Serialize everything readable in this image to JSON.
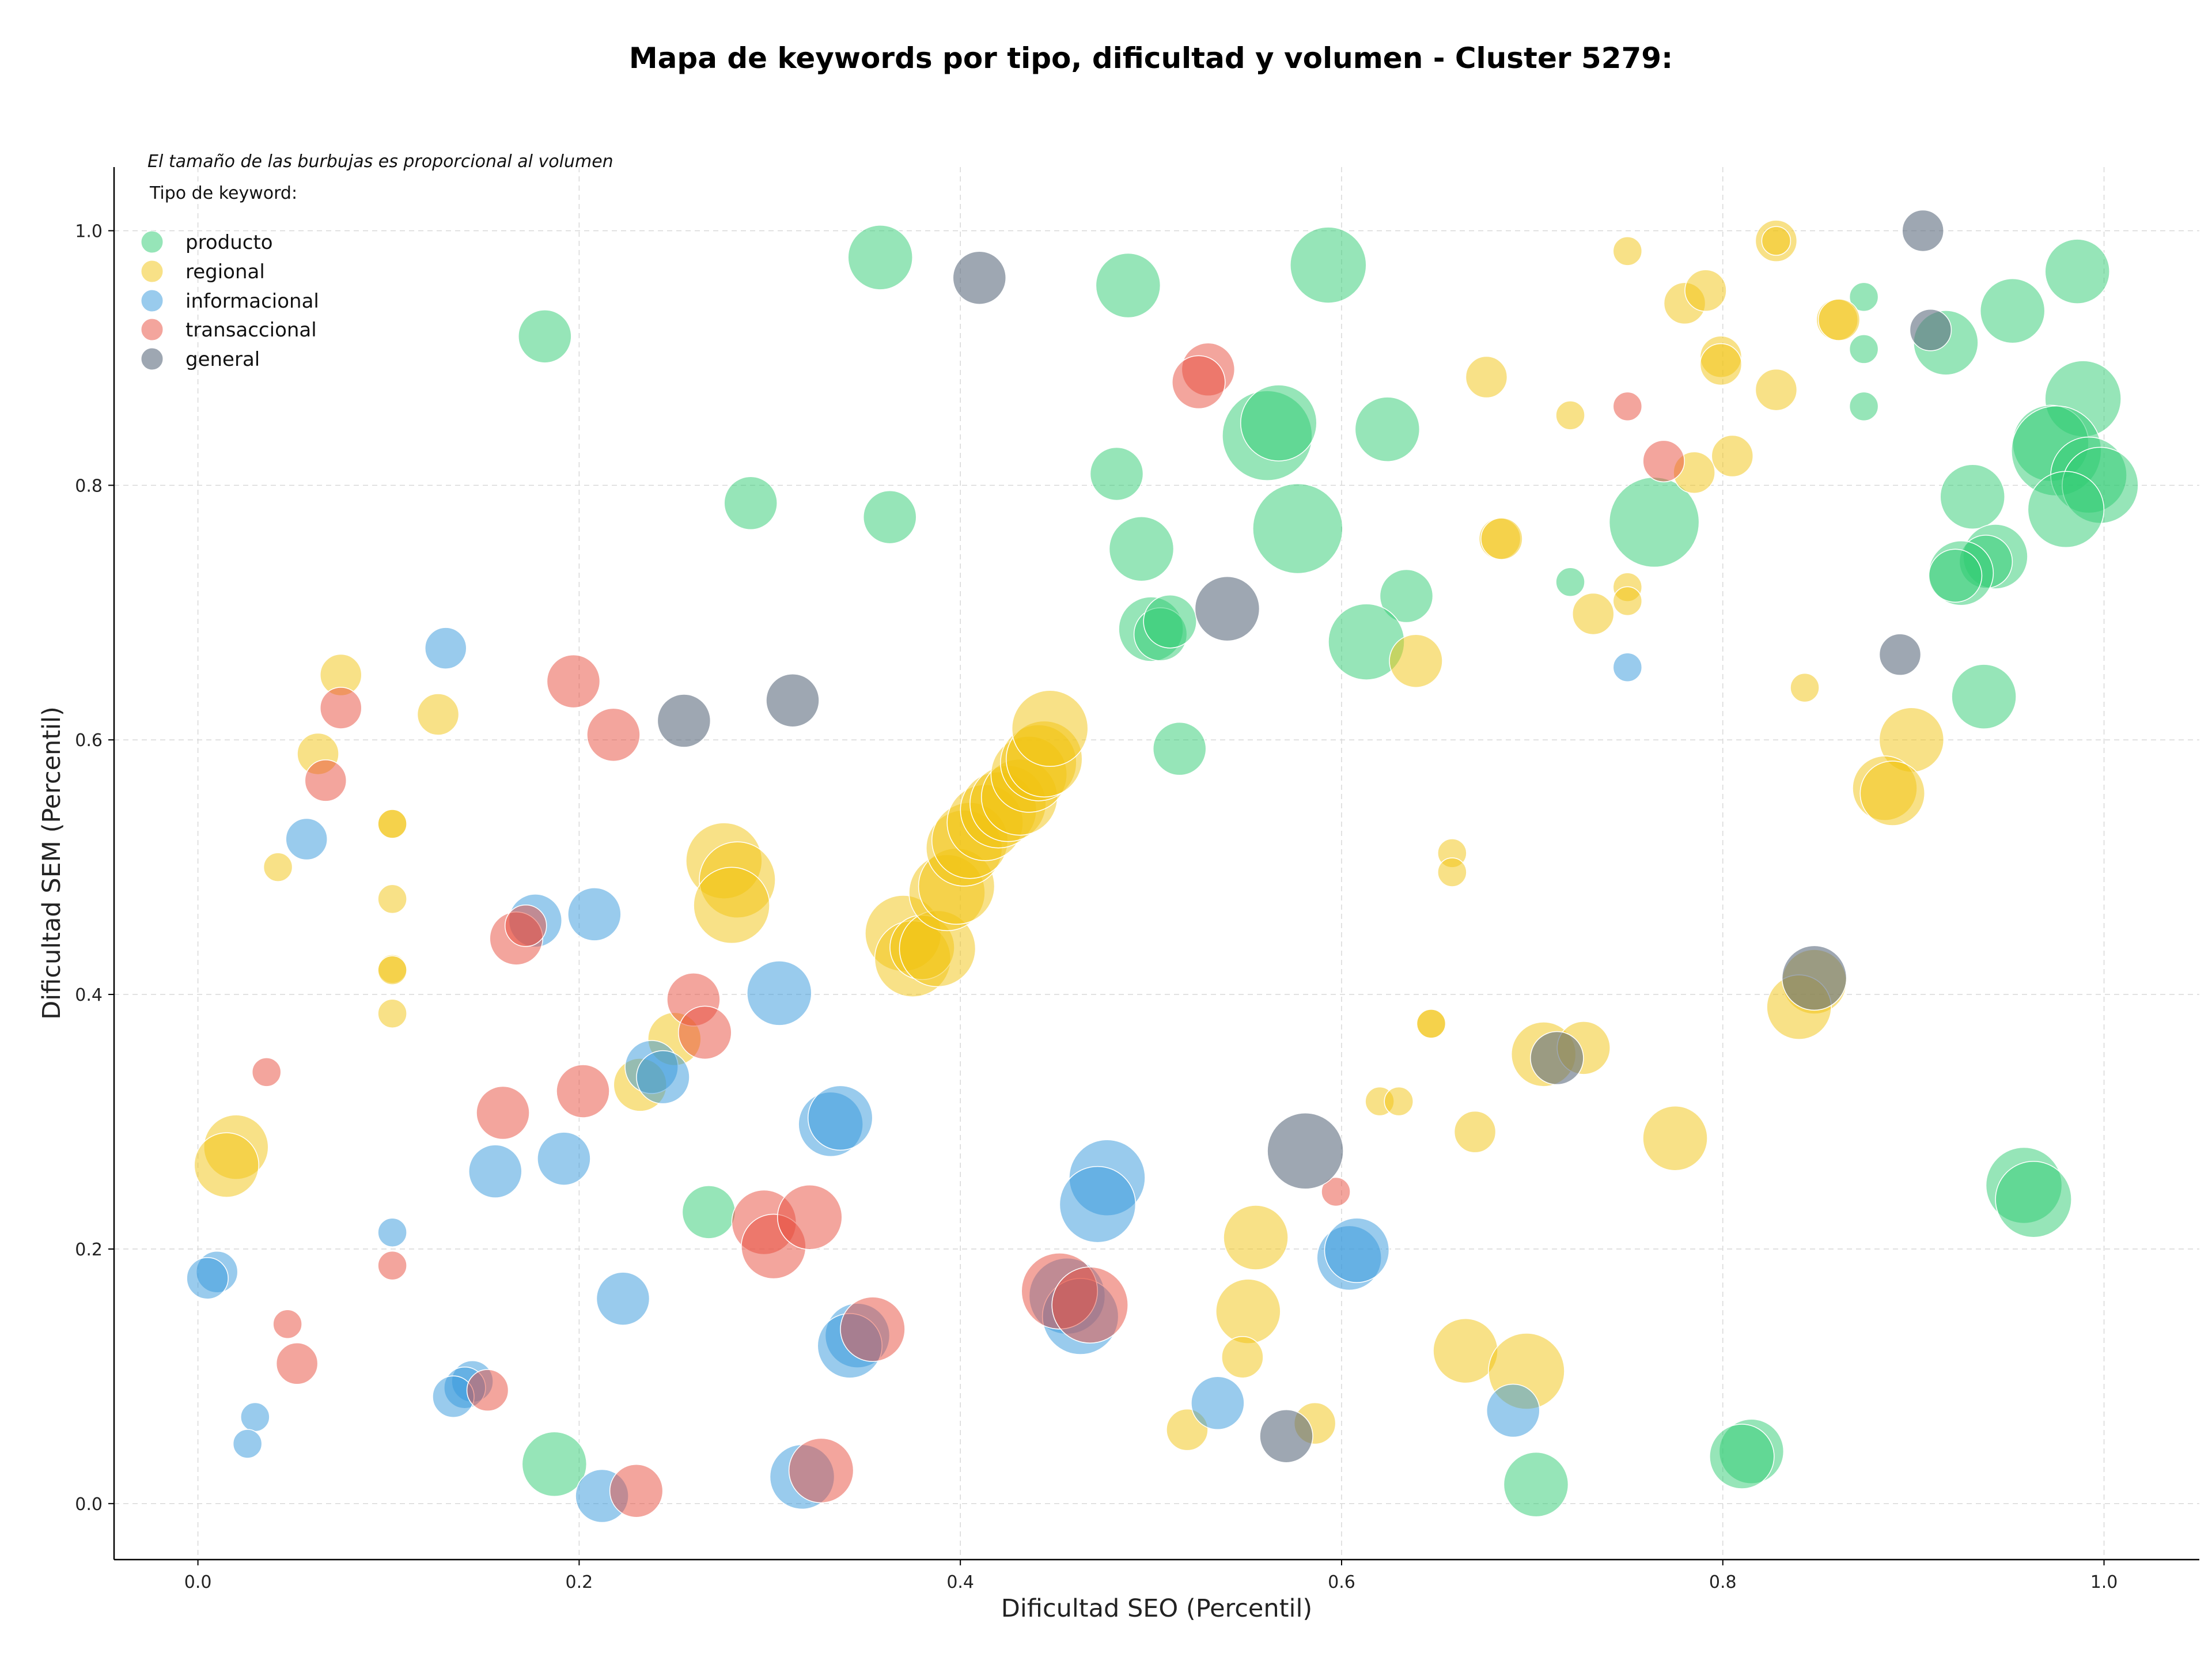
{
  "chart_data": {
    "type": "scatter",
    "title": "Mapa de keywords por tipo, dificultad y volumen - Cluster 5279:",
    "xlabel": "Dificultad SEO (Percentil)",
    "ylabel": "Dificultad SEM (Percentil)",
    "xlim": [
      -0.044,
      1.05
    ],
    "ylim": [
      -0.044,
      1.05
    ],
    "xticks": [
      0.0,
      0.2,
      0.4,
      0.6,
      0.8,
      1.0
    ],
    "yticks": [
      0.0,
      0.2,
      0.4,
      0.6,
      0.8,
      1.0
    ],
    "xtick_labels": [
      "0.0",
      "0.2",
      "0.4",
      "0.6",
      "0.8",
      "1.0"
    ],
    "ytick_labels": [
      "0.0",
      "0.2",
      "0.4",
      "0.6",
      "0.8",
      "1.0"
    ],
    "grid": true,
    "size_note": "El tamaño de las burbujas es proporcional al volumen",
    "legend_title": "Tipo de keyword:",
    "legend_position": "top-left",
    "series": [
      {
        "name": "producto",
        "color": "#2ecc71",
        "points": [
          [
            0.182,
            0.917,
            3
          ],
          [
            0.358,
            0.979,
            4
          ],
          [
            0.593,
            0.973,
            5
          ],
          [
            0.488,
            0.957,
            4
          ],
          [
            0.29,
            0.786,
            3
          ],
          [
            0.363,
            0.775,
            3
          ],
          [
            0.482,
            0.809,
            3
          ],
          [
            0.495,
            0.75,
            4
          ],
          [
            0.561,
            0.839,
            6
          ],
          [
            0.567,
            0.849,
            5
          ],
          [
            0.624,
            0.844,
            4
          ],
          [
            0.577,
            0.766,
            6
          ],
          [
            0.634,
            0.713,
            3
          ],
          [
            0.613,
            0.677,
            5
          ],
          [
            0.5,
            0.687,
            4
          ],
          [
            0.505,
            0.683,
            3
          ],
          [
            0.51,
            0.693,
            3
          ],
          [
            0.515,
            0.593,
            3
          ],
          [
            0.874,
            0.948,
            1
          ],
          [
            0.874,
            0.907,
            1
          ],
          [
            0.874,
            0.862,
            1
          ],
          [
            0.72,
            0.724,
            1
          ],
          [
            0.764,
            0.771,
            6
          ],
          [
            0.986,
            0.968,
            4
          ],
          [
            0.952,
            0.937,
            4
          ],
          [
            0.917,
            0.912,
            4
          ],
          [
            0.989,
            0.868,
            5
          ],
          [
            0.972,
            0.833,
            5
          ],
          [
            0.975,
            0.827,
            6
          ],
          [
            0.992,
            0.808,
            5
          ],
          [
            0.998,
            0.8,
            5
          ],
          [
            0.98,
            0.781,
            5
          ],
          [
            0.931,
            0.791,
            4
          ],
          [
            0.943,
            0.744,
            4
          ],
          [
            0.938,
            0.74,
            3
          ],
          [
            0.925,
            0.731,
            4
          ],
          [
            0.922,
            0.729,
            3
          ],
          [
            0.937,
            0.634,
            4
          ],
          [
            0.958,
            0.25,
            5
          ],
          [
            0.963,
            0.239,
            5
          ],
          [
            0.268,
            0.229,
            3
          ],
          [
            0.187,
            0.031,
            4
          ],
          [
            0.815,
            0.041,
            4
          ],
          [
            0.81,
            0.037,
            4
          ],
          [
            0.702,
            0.015,
            4
          ]
        ]
      },
      {
        "name": "regional",
        "color": "#f1c40f",
        "points": [
          [
            0.075,
            0.651,
            2
          ],
          [
            0.063,
            0.589,
            2
          ],
          [
            0.126,
            0.62,
            2
          ],
          [
            0.102,
            0.534,
            1
          ],
          [
            0.102,
            0.534,
            1
          ],
          [
            0.042,
            0.5,
            1
          ],
          [
            0.102,
            0.475,
            1
          ],
          [
            0.102,
            0.42,
            1
          ],
          [
            0.102,
            0.419,
            1
          ],
          [
            0.102,
            0.385,
            1
          ],
          [
            0.02,
            0.28,
            4
          ],
          [
            0.015,
            0.266,
            4
          ],
          [
            0.232,
            0.329,
            3
          ],
          [
            0.25,
            0.365,
            3
          ],
          [
            0.276,
            0.505,
            5
          ],
          [
            0.283,
            0.49,
            5
          ],
          [
            0.28,
            0.47,
            5
          ],
          [
            0.37,
            0.448,
            5
          ],
          [
            0.375,
            0.428,
            5
          ],
          [
            0.38,
            0.437,
            4
          ],
          [
            0.388,
            0.436,
            5
          ],
          [
            0.393,
            0.48,
            5
          ],
          [
            0.398,
            0.485,
            5
          ],
          [
            0.402,
            0.515,
            5
          ],
          [
            0.405,
            0.521,
            5
          ],
          [
            0.413,
            0.535,
            5
          ],
          [
            0.42,
            0.545,
            5
          ],
          [
            0.425,
            0.55,
            5
          ],
          [
            0.431,
            0.555,
            5
          ],
          [
            0.436,
            0.573,
            5
          ],
          [
            0.441,
            0.582,
            5
          ],
          [
            0.444,
            0.585,
            5
          ],
          [
            0.447,
            0.609,
            5
          ],
          [
            0.75,
            0.984,
            1
          ],
          [
            0.828,
            0.992,
            2
          ],
          [
            0.828,
            0.992,
            1
          ],
          [
            0.78,
            0.943,
            2
          ],
          [
            0.791,
            0.953,
            2
          ],
          [
            0.86,
            0.93,
            2
          ],
          [
            0.861,
            0.93,
            2
          ],
          [
            0.799,
            0.901,
            2
          ],
          [
            0.799,
            0.895,
            2
          ],
          [
            0.676,
            0.885,
            2
          ],
          [
            0.72,
            0.855,
            1
          ],
          [
            0.828,
            0.875,
            2
          ],
          [
            0.805,
            0.823,
            2
          ],
          [
            0.785,
            0.81,
            2
          ],
          [
            0.683,
            0.758,
            2
          ],
          [
            0.684,
            0.758,
            2
          ],
          [
            0.75,
            0.72,
            1
          ],
          [
            0.75,
            0.709,
            1
          ],
          [
            0.732,
            0.699,
            2
          ],
          [
            0.639,
            0.662,
            3
          ],
          [
            0.843,
            0.641,
            1
          ],
          [
            0.899,
            0.6,
            4
          ],
          [
            0.885,
            0.562,
            4
          ],
          [
            0.889,
            0.558,
            4
          ],
          [
            0.658,
            0.511,
            1
          ],
          [
            0.658,
            0.496,
            1
          ],
          [
            0.848,
            0.41,
            4
          ],
          [
            0.84,
            0.39,
            4
          ],
          [
            0.647,
            0.377,
            1
          ],
          [
            0.647,
            0.377,
            1
          ],
          [
            0.706,
            0.353,
            4
          ],
          [
            0.727,
            0.358,
            3
          ],
          [
            0.62,
            0.316,
            1
          ],
          [
            0.63,
            0.316,
            1
          ],
          [
            0.67,
            0.292,
            2
          ],
          [
            0.775,
            0.287,
            4
          ],
          [
            0.555,
            0.209,
            4
          ],
          [
            0.551,
            0.151,
            4
          ],
          [
            0.548,
            0.115,
            2
          ],
          [
            0.519,
            0.058,
            2
          ],
          [
            0.586,
            0.063,
            2
          ],
          [
            0.665,
            0.12,
            4
          ],
          [
            0.697,
            0.104,
            5
          ]
        ]
      },
      {
        "name": "informacional",
        "color": "#3498db",
        "points": [
          [
            0.13,
            0.672,
            2
          ],
          [
            0.057,
            0.522,
            2
          ],
          [
            0.177,
            0.458,
            3
          ],
          [
            0.208,
            0.463,
            3
          ],
          [
            0.305,
            0.401,
            4
          ],
          [
            0.238,
            0.343,
            3
          ],
          [
            0.244,
            0.335,
            3
          ],
          [
            0.156,
            0.261,
            3
          ],
          [
            0.192,
            0.271,
            3
          ],
          [
            0.332,
            0.298,
            4
          ],
          [
            0.337,
            0.303,
            4
          ],
          [
            0.477,
            0.256,
            5
          ],
          [
            0.472,
            0.235,
            5
          ],
          [
            0.102,
            0.213,
            1
          ],
          [
            0.01,
            0.182,
            2
          ],
          [
            0.005,
            0.177,
            2
          ],
          [
            0.223,
            0.161,
            3
          ],
          [
            0.456,
            0.163,
            5
          ],
          [
            0.463,
            0.147,
            5
          ],
          [
            0.346,
            0.132,
            4
          ],
          [
            0.342,
            0.124,
            4
          ],
          [
            0.604,
            0.193,
            4
          ],
          [
            0.608,
            0.199,
            4
          ],
          [
            0.75,
            0.657,
            1
          ],
          [
            0.535,
            0.079,
            3
          ],
          [
            0.69,
            0.073,
            3
          ],
          [
            0.03,
            0.068,
            1
          ],
          [
            0.026,
            0.047,
            1
          ],
          [
            0.144,
            0.096,
            2
          ],
          [
            0.14,
            0.091,
            2
          ],
          [
            0.134,
            0.084,
            2
          ],
          [
            0.212,
            0.006,
            3
          ],
          [
            0.317,
            0.021,
            4
          ]
        ]
      },
      {
        "name": "transaccional",
        "color": "#e74c3c",
        "points": [
          [
            0.075,
            0.625,
            2
          ],
          [
            0.067,
            0.568,
            2
          ],
          [
            0.197,
            0.646,
            3
          ],
          [
            0.218,
            0.604,
            3
          ],
          [
            0.167,
            0.444,
            3
          ],
          [
            0.172,
            0.454,
            2
          ],
          [
            0.036,
            0.339,
            1
          ],
          [
            0.26,
            0.396,
            3
          ],
          [
            0.266,
            0.37,
            3
          ],
          [
            0.202,
            0.324,
            3
          ],
          [
            0.16,
            0.307,
            3
          ],
          [
            0.297,
            0.221,
            4
          ],
          [
            0.302,
            0.202,
            4
          ],
          [
            0.321,
            0.225,
            4
          ],
          [
            0.102,
            0.187,
            1
          ],
          [
            0.047,
            0.141,
            1
          ],
          [
            0.052,
            0.11,
            2
          ],
          [
            0.152,
            0.089,
            2
          ],
          [
            0.354,
            0.137,
            4
          ],
          [
            0.452,
            0.167,
            5
          ],
          [
            0.468,
            0.156,
            5
          ],
          [
            0.23,
            0.01,
            3
          ],
          [
            0.327,
            0.026,
            4
          ],
          [
            0.53,
            0.891,
            3
          ],
          [
            0.525,
            0.881,
            3
          ],
          [
            0.75,
            0.862,
            1
          ],
          [
            0.769,
            0.819,
            2
          ],
          [
            0.597,
            0.245,
            1
          ]
        ]
      },
      {
        "name": "general",
        "color": "#5d6d7e",
        "points": [
          [
            0.41,
            0.963,
            3
          ],
          [
            0.312,
            0.631,
            3
          ],
          [
            0.255,
            0.615,
            3
          ],
          [
            0.54,
            0.703,
            4
          ],
          [
            0.905,
            1.0,
            2
          ],
          [
            0.909,
            0.922,
            2
          ],
          [
            0.893,
            0.667,
            2
          ],
          [
            0.848,
            0.413,
            4
          ],
          [
            0.713,
            0.35,
            3
          ],
          [
            0.581,
            0.277,
            5
          ],
          [
            0.571,
            0.053,
            3
          ]
        ]
      }
    ]
  }
}
